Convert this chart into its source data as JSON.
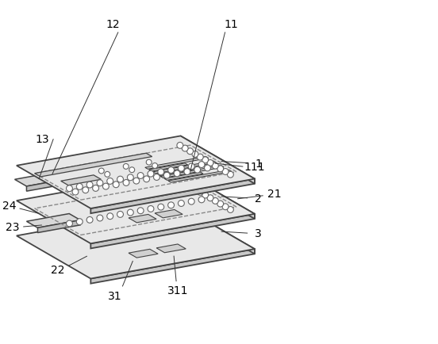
{
  "bg_color": "#ffffff",
  "line_color": "#555555",
  "dark_line": "#444444",
  "label_color": "#000000",
  "figure_size": [
    5.52,
    4.34
  ],
  "dpi": 100,
  "board_face_color": "#e8e8e8",
  "board_front_color": "#c8c8c8",
  "board_right_color": "#d4d4d4",
  "via_color": "#666666",
  "dash_color": "#888888",
  "leader_color": "#333333"
}
